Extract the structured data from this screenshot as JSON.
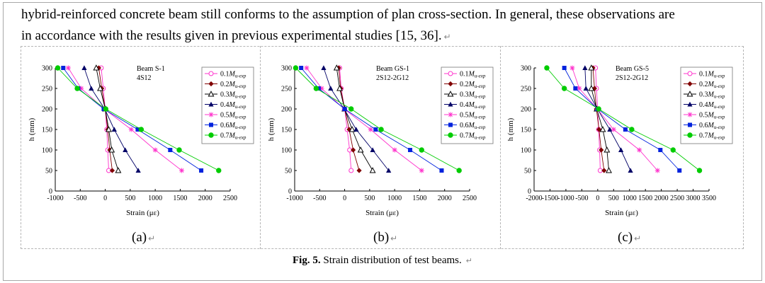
{
  "paragraph": {
    "line1": "hybrid-reinforced concrete beam still conforms to the assumption of plan cross-section. In general, these observations are",
    "line2": "in accordance with the results given in previous experimental studies [15, 36].",
    "para_mark": "↵"
  },
  "figure": {
    "caption_label": "Fig. 5.",
    "caption_text": "Strain distribution of test beams.",
    "caption_mark": "↵"
  },
  "colors": {
    "s0.1": "#ff33cc",
    "s0.2": "#800000",
    "s0.3": "#000000",
    "s0.4": "#000066",
    "s0.5": "#ff33cc",
    "s0.6": "#0022dd",
    "s0.7": "#00cc00"
  },
  "legend_markers": [
    "open-circle",
    "filled-diamond",
    "open-triangle",
    "filled-triangle",
    "star",
    "filled-square",
    "filled-circle"
  ],
  "chart_data": [
    {
      "type": "line",
      "panel_label": "(a)",
      "title": "Beam S-1",
      "subtitle": "4S12",
      "xlabel": "Strain (με)",
      "ylabel": "h (mm)",
      "xlim": [
        -1000,
        2500
      ],
      "xticks": [
        -1000,
        -500,
        0,
        500,
        1000,
        1500,
        2000,
        2500
      ],
      "ylim": [
        0,
        300
      ],
      "yticks": [
        0,
        50,
        100,
        150,
        200,
        250,
        300
      ],
      "y": [
        50,
        100,
        150,
        200,
        250,
        300
      ],
      "series": [
        {
          "name": "0.1Mu-exp",
          "marker": "open-circle",
          "color": "#ff33cc",
          "x": [
            70,
            50,
            30,
            0,
            -40,
            -80
          ]
        },
        {
          "name": "0.2Mu-exp",
          "marker": "filled-diamond",
          "color": "#800000",
          "x": [
            140,
            90,
            50,
            0,
            -70,
            -130
          ]
        },
        {
          "name": "0.3Mu-exp",
          "marker": "open-triangle",
          "color": "#000000",
          "x": [
            260,
            130,
            70,
            0,
            -100,
            -180
          ]
        },
        {
          "name": "0.4Mu-exp",
          "marker": "filled-triangle",
          "color": "#000066",
          "x": [
            660,
            400,
            180,
            -10,
            -280,
            -420
          ]
        },
        {
          "name": "0.5Mu-exp",
          "marker": "star",
          "color": "#ff33cc",
          "x": [
            1530,
            1000,
            520,
            -20,
            -480,
            -740
          ]
        },
        {
          "name": "0.6Mu-exp",
          "marker": "filled-square",
          "color": "#0022dd",
          "x": [
            1920,
            1300,
            650,
            -30,
            -540,
            -840
          ]
        },
        {
          "name": "0.7Mu-exp",
          "marker": "filled-circle",
          "color": "#00cc00",
          "x": [
            2270,
            1480,
            720,
            10,
            -560,
            -950
          ]
        }
      ]
    },
    {
      "type": "line",
      "panel_label": "(b)",
      "title": "Beam GS-1",
      "subtitle": "2S12-2G12",
      "xlabel": "Strain (με)",
      "ylabel": "h (mm)",
      "xlim": [
        -1000,
        2500
      ],
      "xticks": [
        -1000,
        -500,
        0,
        500,
        1000,
        1500,
        2000,
        2500
      ],
      "ylim": [
        0,
        300
      ],
      "yticks": [
        0,
        50,
        100,
        150,
        200,
        250,
        300
      ],
      "y": [
        50,
        100,
        150,
        200,
        250,
        300
      ],
      "series": [
        {
          "name": "0.1Mu-exp",
          "marker": "open-circle",
          "color": "#ff33cc",
          "x": [
            130,
            100,
            50,
            0,
            -70,
            -100
          ]
        },
        {
          "name": "0.2Mu-exp",
          "marker": "filled-diamond",
          "color": "#800000",
          "x": [
            290,
            170,
            90,
            0,
            -80,
            -120
          ]
        },
        {
          "name": "0.3Mu-exp",
          "marker": "open-triangle",
          "color": "#000000",
          "x": [
            560,
            320,
            150,
            0,
            -100,
            -160
          ]
        },
        {
          "name": "0.4Mu-exp",
          "marker": "filled-triangle",
          "color": "#000066",
          "x": [
            880,
            560,
            230,
            -10,
            -280,
            -420
          ]
        },
        {
          "name": "0.5Mu-exp",
          "marker": "star",
          "color": "#ff33cc",
          "x": [
            1540,
            1000,
            520,
            -10,
            -460,
            -760
          ]
        },
        {
          "name": "0.6Mu-exp",
          "marker": "filled-square",
          "color": "#0022dd",
          "x": [
            1940,
            1310,
            620,
            0,
            -520,
            -870
          ]
        },
        {
          "name": "0.7Mu-exp",
          "marker": "filled-circle",
          "color": "#00cc00",
          "x": [
            2290,
            1540,
            730,
            130,
            -570,
            -980
          ]
        }
      ]
    },
    {
      "type": "line",
      "panel_label": "(c)",
      "title": "Beam GS-5",
      "subtitle": "2S12-2G12",
      "xlabel": "Strain (με)",
      "ylabel": "h (mm)",
      "xlim": [
        -2000,
        3500
      ],
      "xticks": [
        -2000,
        -1500,
        -1000,
        -500,
        0,
        500,
        1000,
        1500,
        2000,
        2500,
        3000,
        3500
      ],
      "ylim": [
        0,
        300
      ],
      "yticks": [
        0,
        50,
        100,
        150,
        200,
        250,
        300
      ],
      "y": [
        50,
        100,
        150,
        200,
        250,
        300
      ],
      "series": [
        {
          "name": "0.1Mu-exp",
          "marker": "open-circle",
          "color": "#ff33cc",
          "x": [
            80,
            60,
            30,
            0,
            -40,
            -70
          ]
        },
        {
          "name": "0.2Mu-exp",
          "marker": "filled-diamond",
          "color": "#800000",
          "x": [
            200,
            110,
            40,
            -40,
            -100,
            -150
          ]
        },
        {
          "name": "0.3Mu-exp",
          "marker": "open-triangle",
          "color": "#000000",
          "x": [
            350,
            290,
            160,
            -30,
            -200,
            -200
          ]
        },
        {
          "name": "0.4Mu-exp",
          "marker": "filled-triangle",
          "color": "#000066",
          "x": [
            1030,
            730,
            380,
            -10,
            -370,
            -400
          ]
        },
        {
          "name": "0.5Mu-exp",
          "marker": "star",
          "color": "#ff33cc",
          "x": [
            1880,
            1310,
            500,
            -10,
            -580,
            -800
          ]
        },
        {
          "name": "0.6Mu-exp",
          "marker": "filled-square",
          "color": "#0022dd",
          "x": [
            2570,
            1970,
            870,
            0,
            -700,
            -1050
          ]
        },
        {
          "name": "0.7Mu-exp",
          "marker": "filled-circle",
          "color": "#00cc00",
          "x": [
            3200,
            2370,
            1070,
            30,
            -1050,
            -1600
          ]
        }
      ]
    }
  ]
}
